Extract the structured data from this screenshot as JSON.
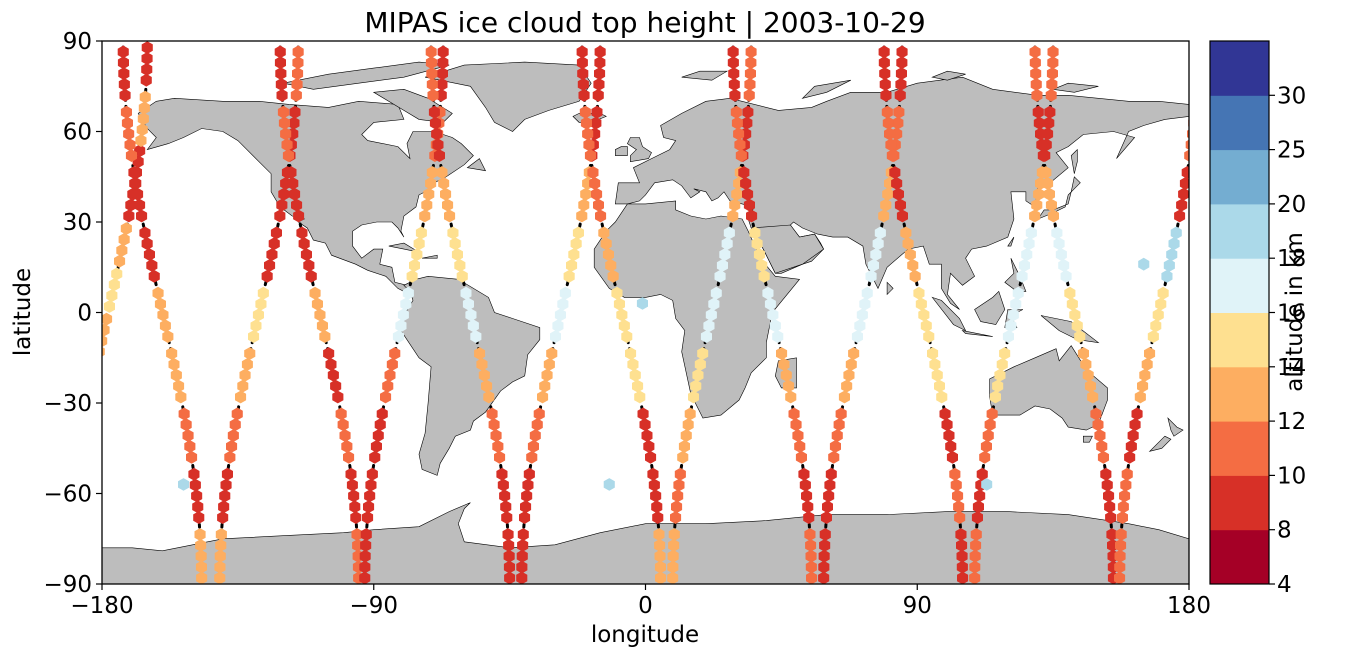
{
  "chart_data": {
    "type": "scatter",
    "title": "MIPAS ice cloud top height | 2003-10-29",
    "xlabel": "longitude",
    "ylabel": "latitude",
    "xlim": [
      -180,
      180
    ],
    "ylim": [
      -90,
      90
    ],
    "xticks": [
      -180,
      -90,
      0,
      90,
      180
    ],
    "yticks": [
      -90,
      -60,
      -30,
      0,
      30,
      60,
      90
    ],
    "xtick_labels": [
      "−180",
      "−90",
      "0",
      "90",
      "180"
    ],
    "ytick_labels": [
      "−90",
      "−60",
      "−30",
      "0",
      "30",
      "60",
      "90"
    ],
    "grid": false,
    "map_background": "land masses in grey (#bdbdbd) with black coastlines; ocean white",
    "colorbar": {
      "label": "altitude in km",
      "boundaries": [
        4,
        8,
        10,
        12,
        14,
        16,
        18,
        20,
        25,
        30
      ],
      "tick_labels": [
        "4",
        "8",
        "10",
        "12",
        "14",
        "16",
        "18",
        "20",
        "25",
        "30"
      ],
      "colors": [
        "#a50026",
        "#d73027",
        "#f46d43",
        "#fdae61",
        "#fee090",
        "#e0f3f8",
        "#abd9e9",
        "#74add1",
        "#4575b4",
        "#313695"
      ]
    },
    "track_style": "dotted black lines mark orbit tracks without cloud detections",
    "orbits": [
      {
        "lon0": -178,
        "dir": 1,
        "cells": [
          [
            -90,
            -70,
            9
          ],
          [
            -70,
            -50,
            9
          ],
          [
            -50,
            -35,
            9
          ],
          [
            -35,
            -15,
            9
          ],
          [
            -15,
            0,
            12
          ],
          [
            0,
            15,
            14
          ],
          [
            15,
            30,
            13
          ],
          [
            30,
            55,
            9
          ],
          [
            55,
            75,
            13
          ],
          [
            75,
            90,
            9
          ]
        ]
      },
      {
        "lon0": -160,
        "dir": -1,
        "cells": [
          [
            90,
            70,
            9
          ],
          [
            70,
            50,
            11
          ],
          [
            50,
            30,
            9
          ],
          [
            30,
            10,
            9
          ],
          [
            10,
            -10,
            13
          ],
          [
            -10,
            -30,
            12
          ],
          [
            -30,
            -50,
            11
          ],
          [
            -50,
            -70,
            9
          ],
          [
            -70,
            -90,
            12
          ]
        ]
      },
      {
        "lon0": -128,
        "dir": 1,
        "cells": [
          [
            -90,
            -70,
            12
          ],
          [
            -70,
            -50,
            9
          ],
          [
            -50,
            -30,
            11
          ],
          [
            -30,
            -10,
            13
          ],
          [
            -10,
            10,
            14
          ],
          [
            10,
            30,
            9
          ],
          [
            30,
            50,
            9
          ],
          [
            50,
            70,
            9
          ],
          [
            70,
            90,
            11
          ]
        ]
      },
      {
        "lon0": -108,
        "dir": -1,
        "cells": [
          [
            90,
            70,
            9
          ],
          [
            70,
            50,
            11
          ],
          [
            50,
            30,
            9
          ],
          [
            30,
            10,
            9
          ],
          [
            10,
            -10,
            13
          ],
          [
            -10,
            -30,
            9
          ],
          [
            -30,
            -50,
            11
          ],
          [
            -50,
            -70,
            9
          ],
          [
            -70,
            -90,
            11
          ]
        ]
      },
      {
        "lon0": -80,
        "dir": 1,
        "cells": [
          [
            -90,
            -70,
            9
          ],
          [
            -70,
            -50,
            9
          ],
          [
            -50,
            -30,
            9
          ],
          [
            -30,
            -10,
            11
          ],
          [
            -10,
            10,
            16
          ],
          [
            10,
            30,
            14
          ],
          [
            30,
            50,
            13
          ],
          [
            50,
            70,
            11
          ],
          [
            70,
            90,
            9
          ]
        ]
      },
      {
        "lon0": -58,
        "dir": -1,
        "cells": [
          [
            90,
            70,
            10
          ],
          [
            70,
            50,
            9
          ],
          [
            50,
            30,
            13
          ],
          [
            30,
            10,
            14
          ],
          [
            10,
            -10,
            16
          ],
          [
            -10,
            -30,
            13
          ],
          [
            -30,
            -50,
            11
          ],
          [
            -50,
            -70,
            9
          ],
          [
            -70,
            -90,
            9
          ]
        ]
      },
      {
        "lon0": -28,
        "dir": 1,
        "cells": [
          [
            -90,
            -70,
            9
          ],
          [
            -70,
            -50,
            9
          ],
          [
            -50,
            -30,
            11
          ],
          [
            -30,
            -10,
            13
          ],
          [
            -10,
            10,
            16
          ],
          [
            10,
            30,
            15
          ],
          [
            30,
            50,
            13
          ],
          [
            50,
            70,
            9
          ],
          [
            70,
            90,
            9
          ]
        ]
      },
      {
        "lon0": -8,
        "dir": -1,
        "cells": [
          [
            90,
            70,
            9
          ],
          [
            70,
            50,
            10
          ],
          [
            50,
            30,
            11
          ],
          [
            30,
            10,
            13
          ],
          [
            10,
            -10,
            15
          ],
          [
            -10,
            -30,
            14
          ],
          [
            -30,
            -50,
            9
          ],
          [
            -50,
            -70,
            9
          ],
          [
            -70,
            -90,
            12
          ]
        ]
      },
      {
        "lon0": 22,
        "dir": 1,
        "cells": [
          [
            -90,
            -70,
            12
          ],
          [
            -70,
            -50,
            11
          ],
          [
            -50,
            -30,
            13
          ],
          [
            -30,
            -10,
            14
          ],
          [
            -10,
            10,
            17
          ],
          [
            10,
            30,
            16
          ],
          [
            30,
            50,
            13
          ],
          [
            50,
            70,
            9
          ],
          [
            70,
            90,
            10
          ]
        ]
      },
      {
        "lon0": 42,
        "dir": -1,
        "cells": [
          [
            90,
            70,
            9
          ],
          [
            70,
            50,
            11
          ],
          [
            50,
            30,
            9
          ],
          [
            30,
            10,
            14
          ],
          [
            10,
            -10,
            16
          ],
          [
            -10,
            -30,
            13
          ],
          [
            -30,
            -50,
            11
          ],
          [
            -50,
            -70,
            9
          ],
          [
            -70,
            -90,
            11
          ]
        ]
      },
      {
        "lon0": 72,
        "dir": 1,
        "cells": [
          [
            -90,
            -70,
            9
          ],
          [
            -70,
            -50,
            9
          ],
          [
            -50,
            -30,
            11
          ],
          [
            -30,
            -10,
            12
          ],
          [
            -10,
            10,
            16
          ],
          [
            10,
            30,
            17
          ],
          [
            30,
            50,
            13
          ],
          [
            50,
            70,
            11
          ],
          [
            70,
            90,
            9
          ]
        ]
      },
      {
        "lon0": 92,
        "dir": -1,
        "cells": [
          [
            90,
            70,
            9
          ],
          [
            70,
            50,
            11
          ],
          [
            50,
            30,
            9
          ],
          [
            30,
            10,
            13
          ],
          [
            10,
            -10,
            15
          ],
          [
            -10,
            -30,
            14
          ],
          [
            -30,
            -50,
            9
          ],
          [
            -50,
            -70,
            11
          ],
          [
            -70,
            -90,
            9
          ]
        ]
      },
      {
        "lon0": 122,
        "dir": 1,
        "cells": [
          [
            -90,
            -70,
            11
          ],
          [
            -70,
            -50,
            9
          ],
          [
            -50,
            -30,
            11
          ],
          [
            -30,
            -10,
            14
          ],
          [
            -10,
            10,
            16
          ],
          [
            10,
            30,
            17
          ],
          [
            30,
            50,
            13
          ],
          [
            50,
            70,
            9
          ],
          [
            70,
            90,
            11
          ]
        ]
      },
      {
        "lon0": 142,
        "dir": -1,
        "cells": [
          [
            90,
            70,
            11
          ],
          [
            70,
            50,
            9
          ],
          [
            50,
            30,
            13
          ],
          [
            30,
            10,
            16
          ],
          [
            10,
            -10,
            15
          ],
          [
            -10,
            -30,
            13
          ],
          [
            -30,
            -50,
            11
          ],
          [
            -50,
            -70,
            9
          ],
          [
            -70,
            -90,
            9
          ]
        ]
      },
      {
        "lon0": 170,
        "dir": 1,
        "cells": [
          [
            -90,
            -70,
            11
          ],
          [
            -70,
            -50,
            11
          ],
          [
            -50,
            -30,
            9
          ],
          [
            -30,
            -10,
            13
          ],
          [
            -10,
            10,
            15
          ],
          [
            10,
            30,
            18
          ],
          [
            30,
            50,
            9
          ],
          [
            50,
            70,
            10
          ],
          [
            70,
            90,
            11
          ]
        ]
      }
    ],
    "extra_points": [
      {
        "lon": -153,
        "lat": -57,
        "value": 19
      },
      {
        "lon": -12,
        "lat": -57,
        "value": 19
      },
      {
        "lon": 113,
        "lat": -57,
        "value": 19
      },
      {
        "lon": -1,
        "lat": 3,
        "value": 19
      },
      {
        "lon": 165,
        "lat": 16,
        "value": 19
      }
    ]
  }
}
